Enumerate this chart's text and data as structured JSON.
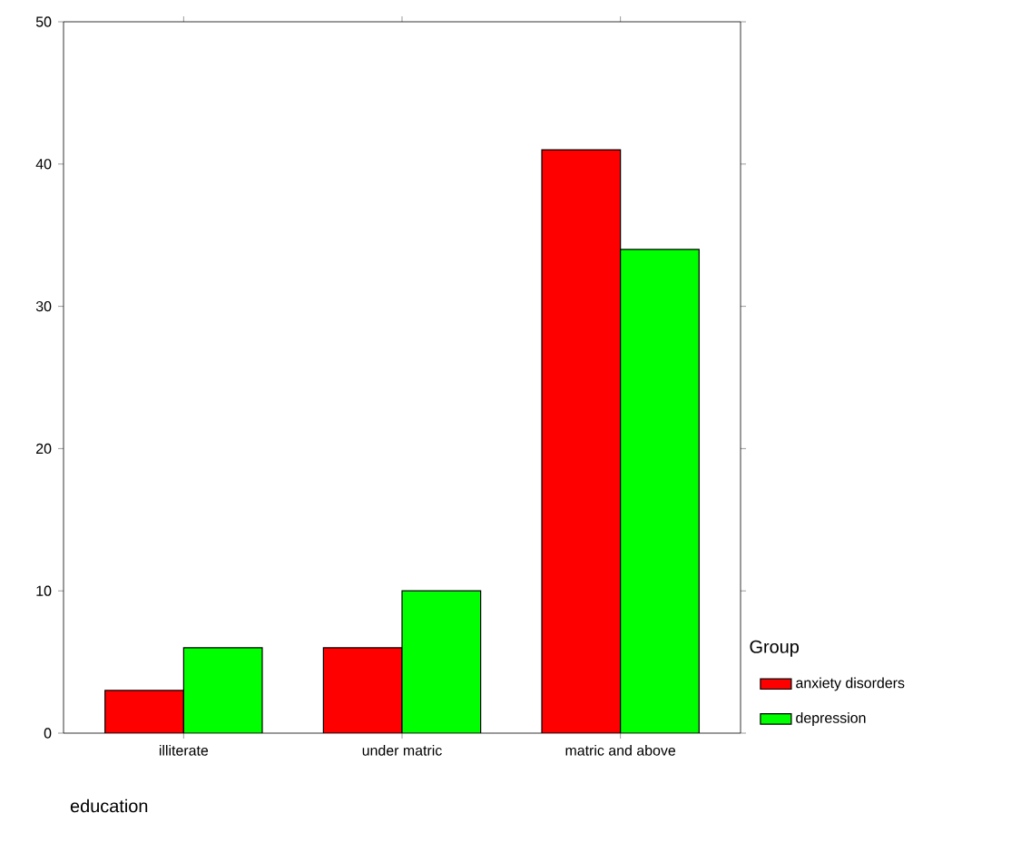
{
  "chart_data": {
    "type": "bar",
    "xlabel": "education",
    "legend_title": "Group",
    "categories": [
      "illiterate",
      "under matric",
      "matric and above"
    ],
    "series": [
      {
        "name": "anxiety disorders",
        "color": "#ff0000",
        "values": [
          3,
          6,
          41
        ]
      },
      {
        "name": "depression",
        "color": "#00ff00",
        "values": [
          6,
          10,
          34
        ]
      }
    ],
    "ylim": [
      0,
      50
    ],
    "yticks": [
      0,
      10,
      20,
      30,
      40,
      50
    ],
    "legend": "right"
  }
}
